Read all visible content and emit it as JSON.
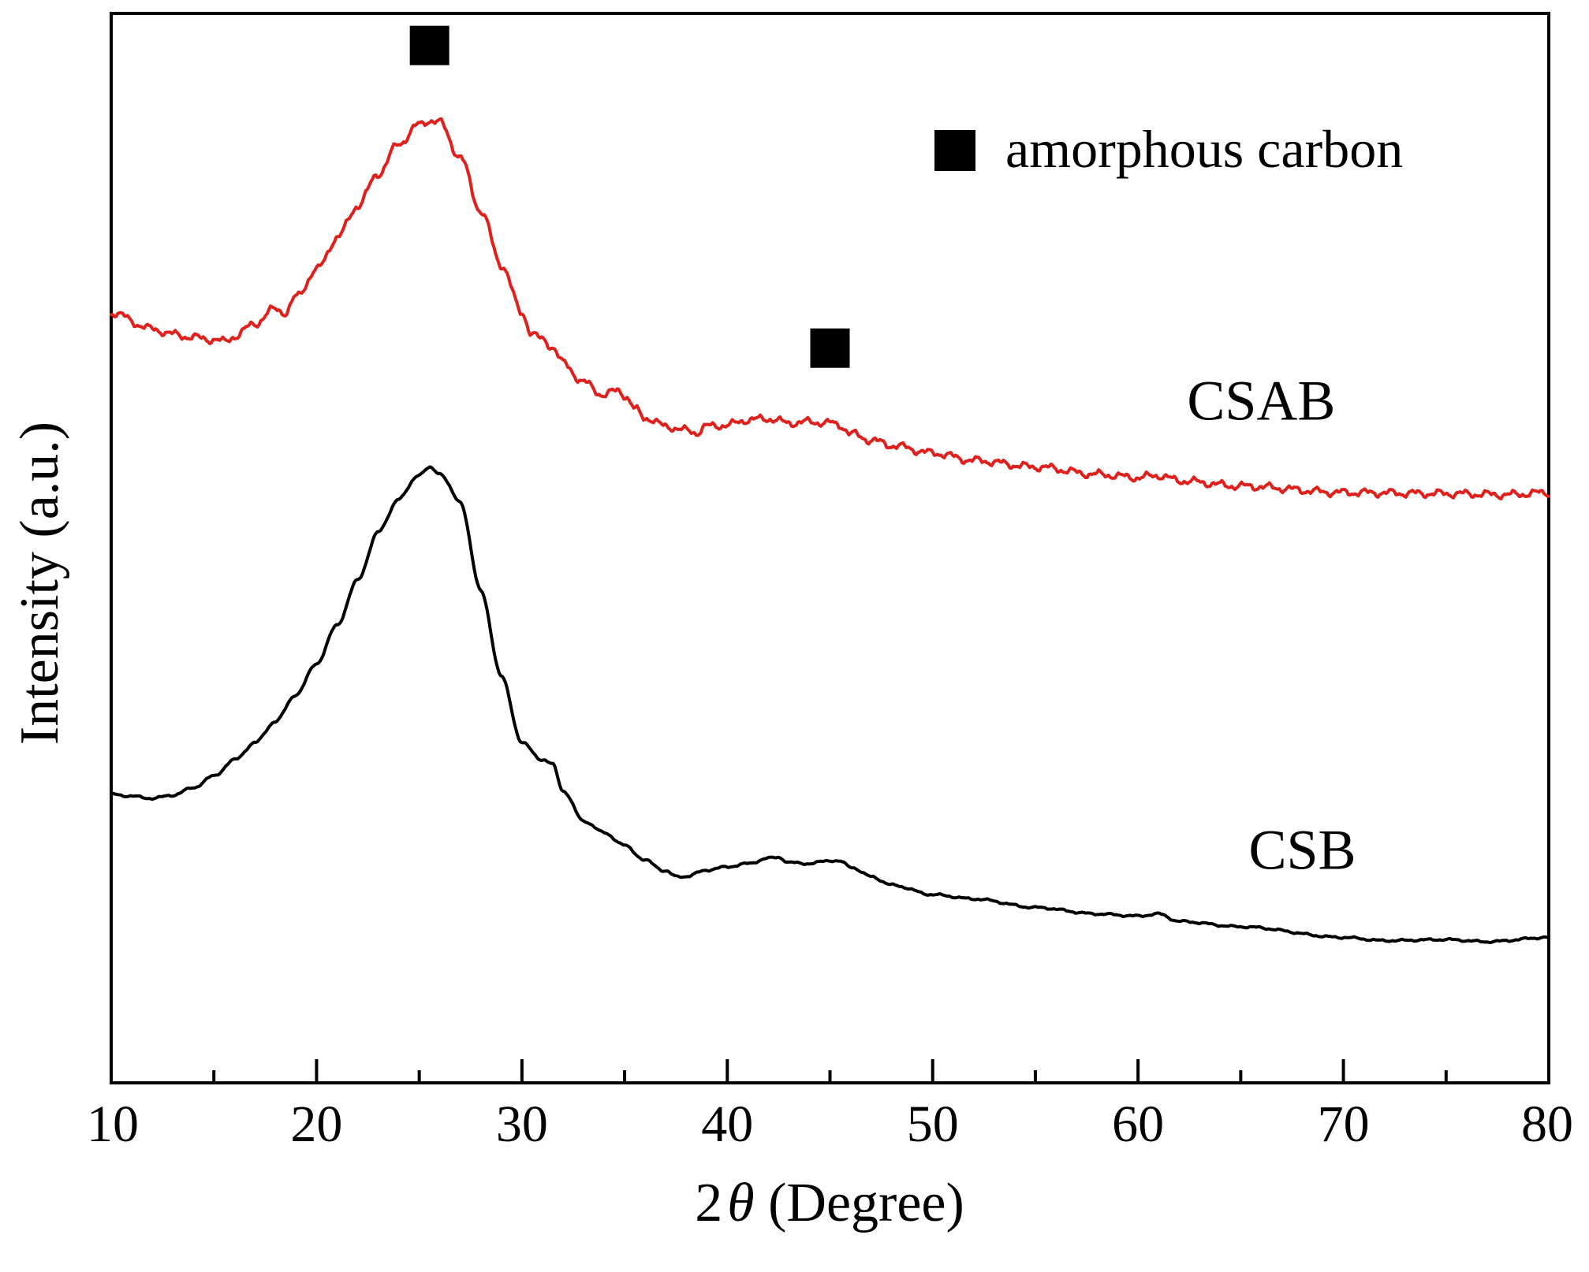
{
  "chart_data": {
    "type": "line",
    "title": "",
    "xlabel_prefix": "2",
    "xlabel_symbol": "θ",
    "xlabel_suffix": " (Degree)",
    "ylabel": "Intensity (a.u.)",
    "xlim": [
      10,
      80
    ],
    "ylim": [
      0,
      100
    ],
    "x_ticks_major": [
      10,
      20,
      30,
      40,
      50,
      60,
      70,
      80
    ],
    "x_ticks_minor": [
      15,
      25,
      35,
      45,
      55,
      65,
      75
    ],
    "x_tick_labels": [
      "10",
      "20",
      "30",
      "40",
      "50",
      "60",
      "70",
      "80"
    ],
    "y_ticks": [],
    "grid": false,
    "legend": {
      "placement": "top-right",
      "entries": [
        {
          "marker": "square",
          "label": "amorphous carbon",
          "color": "#000000"
        }
      ]
    },
    "series": [
      {
        "name": "CSAB",
        "color": "#e0201c",
        "noise": 0.45,
        "points": [
          [
            10,
            72
          ],
          [
            12,
            70.5
          ],
          [
            13,
            70.0
          ],
          [
            14,
            69.7
          ],
          [
            15,
            69.5
          ],
          [
            15.5,
            69.3
          ],
          [
            16,
            69.8
          ],
          [
            17,
            71.0
          ],
          [
            18,
            72.4
          ],
          [
            18.5,
            72.0
          ],
          [
            19,
            73.5
          ],
          [
            20,
            76.0
          ],
          [
            21,
            79.0
          ],
          [
            22,
            82.0
          ],
          [
            23,
            85.0
          ],
          [
            24,
            87.8
          ],
          [
            25,
            89.6
          ],
          [
            25.5,
            90.0
          ],
          [
            26,
            89.8
          ],
          [
            27,
            86.5
          ],
          [
            28,
            81.5
          ],
          [
            29,
            76.5
          ],
          [
            30,
            72.0
          ],
          [
            30.5,
            70.0
          ],
          [
            31,
            69.5
          ],
          [
            31.5,
            68.8
          ],
          [
            32,
            67.3
          ],
          [
            33,
            65.5
          ],
          [
            34,
            64.3
          ],
          [
            34.7,
            64.8
          ],
          [
            35,
            64.3
          ],
          [
            35.5,
            63.0
          ],
          [
            36,
            62.2
          ],
          [
            37,
            61.4
          ],
          [
            38,
            61.0
          ],
          [
            38.5,
            60.8
          ],
          [
            39,
            61.4
          ],
          [
            40,
            61.5
          ],
          [
            41,
            62.0
          ],
          [
            42,
            62.1
          ],
          [
            43,
            61.7
          ],
          [
            44,
            61.8
          ],
          [
            45,
            61.7
          ],
          [
            45.5,
            61.5
          ],
          [
            46,
            60.7
          ],
          [
            47,
            60.1
          ],
          [
            48,
            59.6
          ],
          [
            50,
            58.9
          ],
          [
            52,
            58.2
          ],
          [
            55,
            57.6
          ],
          [
            58,
            56.9
          ],
          [
            60,
            56.6
          ],
          [
            61,
            56.8
          ],
          [
            62,
            56.3
          ],
          [
            65,
            55.8
          ],
          [
            70,
            55.2
          ],
          [
            75,
            55.1
          ],
          [
            78,
            55.0
          ],
          [
            80,
            55.2
          ]
        ],
        "peak_markers": [
          25.5,
          45
        ]
      },
      {
        "name": "CSB",
        "color": "#000000",
        "noise": 0.12,
        "points": [
          [
            10,
            27.0
          ],
          [
            11,
            26.8
          ],
          [
            12,
            26.6
          ],
          [
            13,
            26.9
          ],
          [
            14,
            27.6
          ],
          [
            15,
            28.7
          ],
          [
            16,
            30.2
          ],
          [
            17,
            31.8
          ],
          [
            18,
            33.8
          ],
          [
            19,
            36.3
          ],
          [
            20,
            39.2
          ],
          [
            21,
            42.8
          ],
          [
            22,
            47.0
          ],
          [
            23,
            51.5
          ],
          [
            24,
            54.6
          ],
          [
            25,
            56.9
          ],
          [
            25.5,
            57.5
          ],
          [
            26,
            57.0
          ],
          [
            27,
            54.3
          ],
          [
            28,
            46.0
          ],
          [
            29,
            38.0
          ],
          [
            30,
            31.8
          ],
          [
            31,
            30.2
          ],
          [
            31.5,
            29.8
          ],
          [
            32,
            27.3
          ],
          [
            33,
            24.5
          ],
          [
            34,
            23.4
          ],
          [
            35,
            22.2
          ],
          [
            36,
            20.8
          ],
          [
            37,
            19.8
          ],
          [
            37.5,
            19.3
          ],
          [
            38,
            19.3
          ],
          [
            39,
            19.9
          ],
          [
            40,
            20.2
          ],
          [
            41,
            20.5
          ],
          [
            42,
            21.0
          ],
          [
            42.5,
            21.1
          ],
          [
            43,
            20.6
          ],
          [
            44,
            20.5
          ],
          [
            45,
            20.8
          ],
          [
            45.5,
            20.7
          ],
          [
            46,
            20.2
          ],
          [
            47,
            19.3
          ],
          [
            48,
            18.5
          ],
          [
            50,
            17.6
          ],
          [
            52,
            17.2
          ],
          [
            55,
            16.4
          ],
          [
            58,
            15.8
          ],
          [
            60,
            15.6
          ],
          [
            61,
            15.8
          ],
          [
            62,
            15.1
          ],
          [
            65,
            14.6
          ],
          [
            70,
            13.6
          ],
          [
            72,
            13.3
          ],
          [
            75,
            13.4
          ],
          [
            77,
            13.2
          ],
          [
            80,
            13.6
          ]
        ],
        "peak_markers": []
      }
    ],
    "series_label_positions": {
      "CSAB": [
        66,
        62
      ],
      "CSB": [
        68,
        20
      ]
    }
  }
}
